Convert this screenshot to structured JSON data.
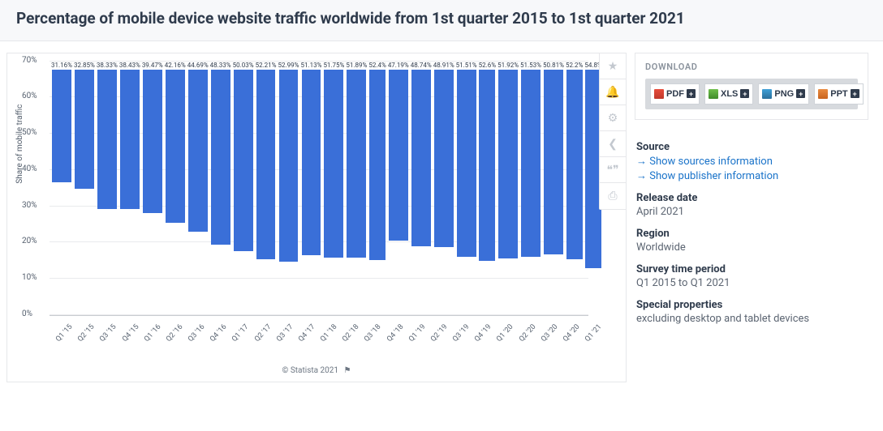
{
  "header": {
    "title": "Percentage of mobile device website traffic worldwide from 1st quarter 2015 to 1st quarter 2021"
  },
  "chart": {
    "type": "bar",
    "ylabel": "Share of mobile traffic",
    "ylim": [
      0,
      70
    ],
    "yticks": [
      0,
      10,
      20,
      30,
      40,
      50,
      60,
      70
    ],
    "ytick_suffix": "%",
    "bar_color": "#3a6fd8",
    "background_color": "#ffffff",
    "grid_color": "#e9eaed",
    "value_suffix": "%",
    "label_fontsize": 10,
    "categories": [
      "Q1 '15",
      "Q2 '15",
      "Q3 '15",
      "Q4 '15",
      "Q1 '16",
      "Q2 '16",
      "Q3 '16",
      "Q4 '16",
      "Q1 '17",
      "Q2 '17",
      "Q3 '17",
      "Q4 '17",
      "Q1 '18",
      "Q2 '18",
      "Q3 '18",
      "Q4 '18",
      "Q1 '19",
      "Q2 '19",
      "Q3 '19",
      "Q4 '19",
      "Q1 '20",
      "Q2 '20",
      "Q3 '20",
      "Q4 '20",
      "Q1 '21"
    ],
    "values": [
      31.16,
      32.85,
      38.33,
      38.43,
      39.47,
      42.16,
      44.69,
      48.33,
      50.03,
      52.21,
      52.99,
      51.13,
      51.75,
      51.89,
      52.4,
      47.19,
      48.74,
      48.91,
      51.51,
      52.6,
      51.92,
      51.53,
      50.81,
      52.2,
      54.8
    ],
    "credit": "© Statista 2021"
  },
  "toolbar": {
    "items": [
      "star",
      "bell",
      "gear",
      "share",
      "quote",
      "print"
    ],
    "glyphs": {
      "star": "★",
      "bell": "🔔",
      "gear": "⚙",
      "share": "�django",
      "quote": "❝",
      "print": "⎙"
    }
  },
  "download": {
    "title": "DOWNLOAD",
    "buttons": [
      {
        "id": "pdf",
        "label": "PDF",
        "ico": "ico-pdf"
      },
      {
        "id": "xls",
        "label": "XLS",
        "ico": "ico-xls"
      },
      {
        "id": "png",
        "label": "PNG",
        "ico": "ico-png"
      },
      {
        "id": "ppt",
        "label": "PPT",
        "ico": "ico-ppt"
      }
    ]
  },
  "meta": {
    "source_label": "Source",
    "source_links": [
      "Show sources information",
      "Show publisher information"
    ],
    "release_label": "Release date",
    "release_value": "April 2021",
    "region_label": "Region",
    "region_value": "Worldwide",
    "period_label": "Survey time period",
    "period_value": "Q1 2015 to Q1 2021",
    "special_label": "Special properties",
    "special_value": "excluding desktop and tablet devices"
  }
}
